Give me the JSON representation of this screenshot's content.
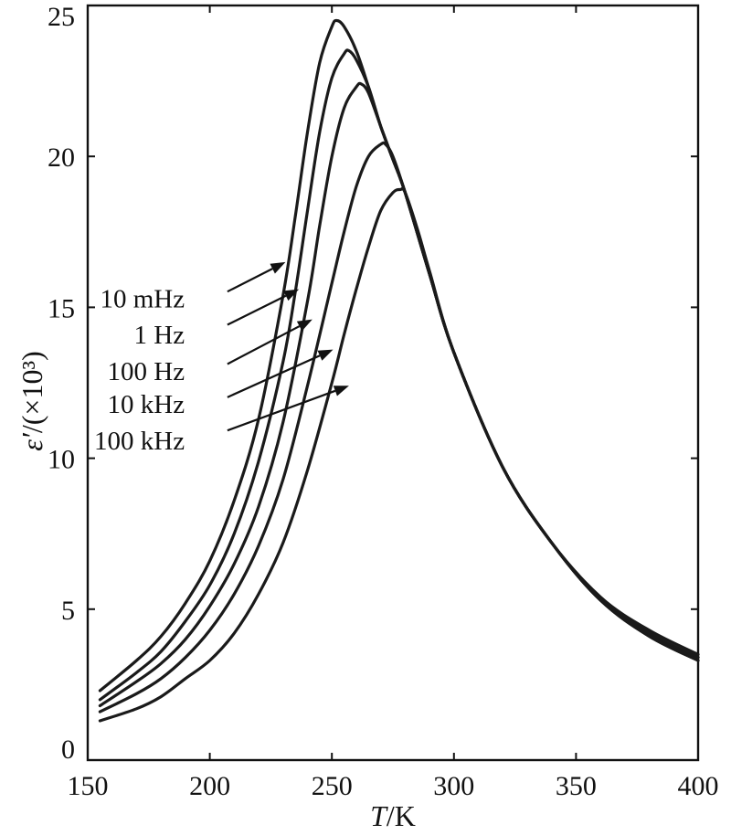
{
  "chart_data": {
    "type": "line",
    "xlabel": {
      "symbol": "T",
      "unit": "/K"
    },
    "ylabel": {
      "symbol": "ε′",
      "unit": "/(×10³)"
    },
    "xlim": [
      150,
      400
    ],
    "ylim": [
      0,
      25
    ],
    "x_ticks": [
      "150",
      "200",
      "250",
      "300",
      "350",
      "400"
    ],
    "y_ticks": [
      "0",
      "5",
      "10",
      "15",
      "20",
      "25"
    ],
    "grid": false,
    "legend": "inline arrows, left of peaks",
    "series": [
      {
        "name": "10 mHz",
        "x": [
          155,
          170,
          180,
          190,
          200,
          210,
          220,
          230,
          235,
          240,
          245,
          250,
          252,
          255,
          260,
          265,
          270,
          275,
          280,
          290,
          300,
          320,
          340,
          360,
          380,
          400
        ],
        "y": [
          2.3,
          3.3,
          4.1,
          5.2,
          6.6,
          8.6,
          11.3,
          15.4,
          18.0,
          20.8,
          23.1,
          24.3,
          24.5,
          24.3,
          23.5,
          22.3,
          21.0,
          19.9,
          18.8,
          16.1,
          13.5,
          9.7,
          7.2,
          5.4,
          4.3,
          3.5
        ]
      },
      {
        "name": "1 Hz",
        "x": [
          155,
          170,
          180,
          190,
          200,
          210,
          220,
          230,
          235,
          240,
          245,
          250,
          255,
          257,
          260,
          265,
          270,
          275,
          280,
          290,
          300,
          320,
          340,
          360,
          380,
          400
        ],
        "y": [
          2.0,
          2.9,
          3.6,
          4.6,
          5.8,
          7.5,
          9.9,
          13.2,
          15.5,
          18.2,
          20.8,
          22.6,
          23.4,
          23.5,
          23.2,
          22.3,
          21.0,
          19.9,
          18.8,
          16.1,
          13.5,
          9.7,
          7.2,
          5.4,
          4.2,
          3.4
        ]
      },
      {
        "name": "100 Hz",
        "x": [
          155,
          170,
          180,
          190,
          200,
          210,
          220,
          230,
          240,
          245,
          250,
          255,
          260,
          262,
          265,
          270,
          275,
          280,
          290,
          300,
          320,
          340,
          360,
          380,
          400
        ],
        "y": [
          1.8,
          2.6,
          3.2,
          4.0,
          5.1,
          6.5,
          8.4,
          11.2,
          15.2,
          17.7,
          20.0,
          21.6,
          22.3,
          22.4,
          22.1,
          21.0,
          19.9,
          18.8,
          16.1,
          13.5,
          9.7,
          7.2,
          5.3,
          4.2,
          3.4
        ]
      },
      {
        "name": "10 kHz",
        "x": [
          155,
          170,
          180,
          190,
          200,
          210,
          220,
          230,
          240,
          250,
          255,
          260,
          265,
          270,
          272,
          275,
          280,
          290,
          300,
          320,
          340,
          360,
          380,
          400
        ],
        "y": [
          1.6,
          2.2,
          2.7,
          3.4,
          4.3,
          5.5,
          7.1,
          9.3,
          12.4,
          15.8,
          17.5,
          19.0,
          20.0,
          20.4,
          20.4,
          20.0,
          18.8,
          16.1,
          13.5,
          9.7,
          7.2,
          5.3,
          4.1,
          3.3
        ]
      },
      {
        "name": "100 kHz",
        "x": [
          155,
          170,
          180,
          190,
          200,
          210,
          220,
          230,
          240,
          250,
          255,
          260,
          265,
          270,
          275,
          278,
          280,
          285,
          290,
          300,
          320,
          340,
          360,
          380,
          400
        ],
        "y": [
          1.3,
          1.7,
          2.1,
          2.7,
          3.3,
          4.2,
          5.5,
          7.2,
          9.6,
          12.5,
          14.1,
          15.6,
          17.0,
          18.2,
          18.8,
          18.9,
          18.8,
          17.6,
          16.2,
          13.5,
          9.7,
          7.2,
          5.3,
          4.1,
          3.3
        ]
      }
    ]
  },
  "annotations": [
    {
      "series": "10 mHz",
      "label": "10 mHz",
      "label_anchor_x": 165,
      "label_anchor_y": 15.3,
      "arrow_from": [
        190,
        15.4
      ],
      "arrow_to": [
        231,
        16.5
      ]
    },
    {
      "series": "1 Hz",
      "label": "1 Hz",
      "label_anchor_x": 165,
      "label_anchor_y": 14.1,
      "arrow_from": [
        190,
        14.3
      ],
      "arrow_to": [
        236.5,
        15.6
      ]
    },
    {
      "series": "100 Hz",
      "label": "100 Hz",
      "label_anchor_x": 165,
      "label_anchor_y": 12.9,
      "arrow_from": [
        190,
        13.0
      ],
      "arrow_to": [
        242,
        14.6
      ]
    },
    {
      "series": "10 kHz",
      "label": "10 kHz",
      "label_anchor_x": 165,
      "label_anchor_y": 11.8,
      "arrow_from": [
        190,
        11.9
      ],
      "arrow_to": [
        250.5,
        13.6
      ]
    },
    {
      "series": "100 kHz",
      "label": "100 kHz",
      "label_anchor_x": 165,
      "label_anchor_y": 10.6,
      "arrow_from": [
        190,
        10.8
      ],
      "arrow_to": [
        257,
        12.4
      ]
    }
  ]
}
